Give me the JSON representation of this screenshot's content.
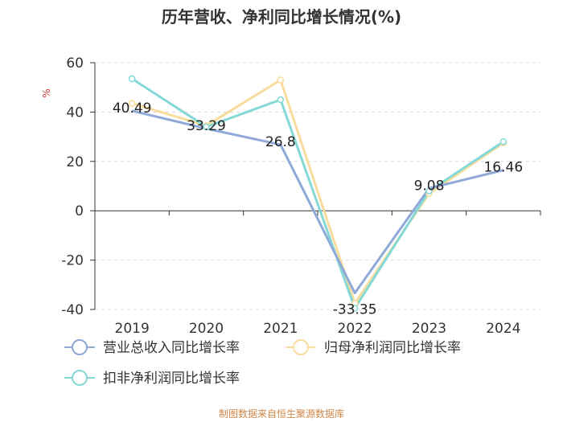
{
  "chart_data": {
    "type": "line",
    "title": "历年营收、净利同比增长情况(%)",
    "ylabel": "%",
    "xlabel": "",
    "categories": [
      "2019",
      "2020",
      "2021",
      "2022",
      "2023",
      "2024"
    ],
    "ylim": [
      -40,
      60
    ],
    "yticks": [
      60,
      40,
      20,
      0,
      -20,
      -40
    ],
    "series": [
      {
        "name": "营业总收入同比增长率",
        "color": "#8fa9d8",
        "values": [
          40.49,
          33.29,
          26.8,
          -33.35,
          9.08,
          16.46
        ],
        "labels": [
          "40.49",
          "33.29",
          "26.8",
          "-33.35",
          "9.08",
          "16.46"
        ]
      },
      {
        "name": "归母净利润同比增长率",
        "color": "#f8dc9c",
        "values": [
          43.5,
          34.5,
          53.0,
          -37.5,
          7.0,
          27.5
        ]
      },
      {
        "name": "扣非净利润同比增长率",
        "color": "#84d9d6",
        "values": [
          53.5,
          34.0,
          45.0,
          -39.5,
          8.0,
          28.0
        ]
      }
    ]
  },
  "source": "制图数据来自恒生聚源数据库"
}
